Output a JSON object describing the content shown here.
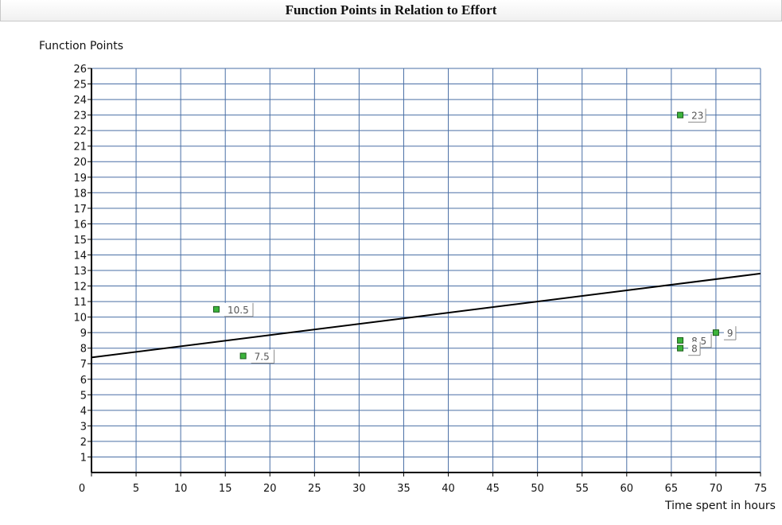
{
  "chart_data": {
    "type": "scatter",
    "title": "Function Points in Relation to Effort",
    "xlabel": "Time spent in hours",
    "ylabel": "Function Points",
    "xlim": [
      0,
      75
    ],
    "ylim": [
      0,
      26
    ],
    "xticks": [
      "0",
      "5",
      "10",
      "15",
      "20",
      "25",
      "30",
      "35",
      "40",
      "45",
      "50",
      "55",
      "60",
      "65",
      "70",
      "75"
    ],
    "yticks": [
      "1",
      "2",
      "3",
      "4",
      "5",
      "6",
      "7",
      "8",
      "9",
      "10",
      "11",
      "12",
      "13",
      "14",
      "15",
      "16",
      "17",
      "18",
      "19",
      "20",
      "21",
      "22",
      "23",
      "24",
      "25",
      "26"
    ],
    "grid": true,
    "points": [
      {
        "x": 14,
        "y": 10.5,
        "label": "10.5"
      },
      {
        "x": 17,
        "y": 7.5,
        "label": "7.5"
      },
      {
        "x": 66,
        "y": 23,
        "label": "23"
      },
      {
        "x": 66,
        "y": 8.5,
        "label": "8.5"
      },
      {
        "x": 66,
        "y": 8,
        "label": "8"
      },
      {
        "x": 70,
        "y": 9,
        "label": "9"
      }
    ],
    "trendline": {
      "x": [
        0,
        75
      ],
      "y": [
        7.4,
        12.8
      ]
    },
    "colors": {
      "point_fill": "#3cb43c",
      "point_stroke": "#1a5a1a",
      "grid": "#4a6fa5",
      "trendline": "#000000"
    }
  }
}
